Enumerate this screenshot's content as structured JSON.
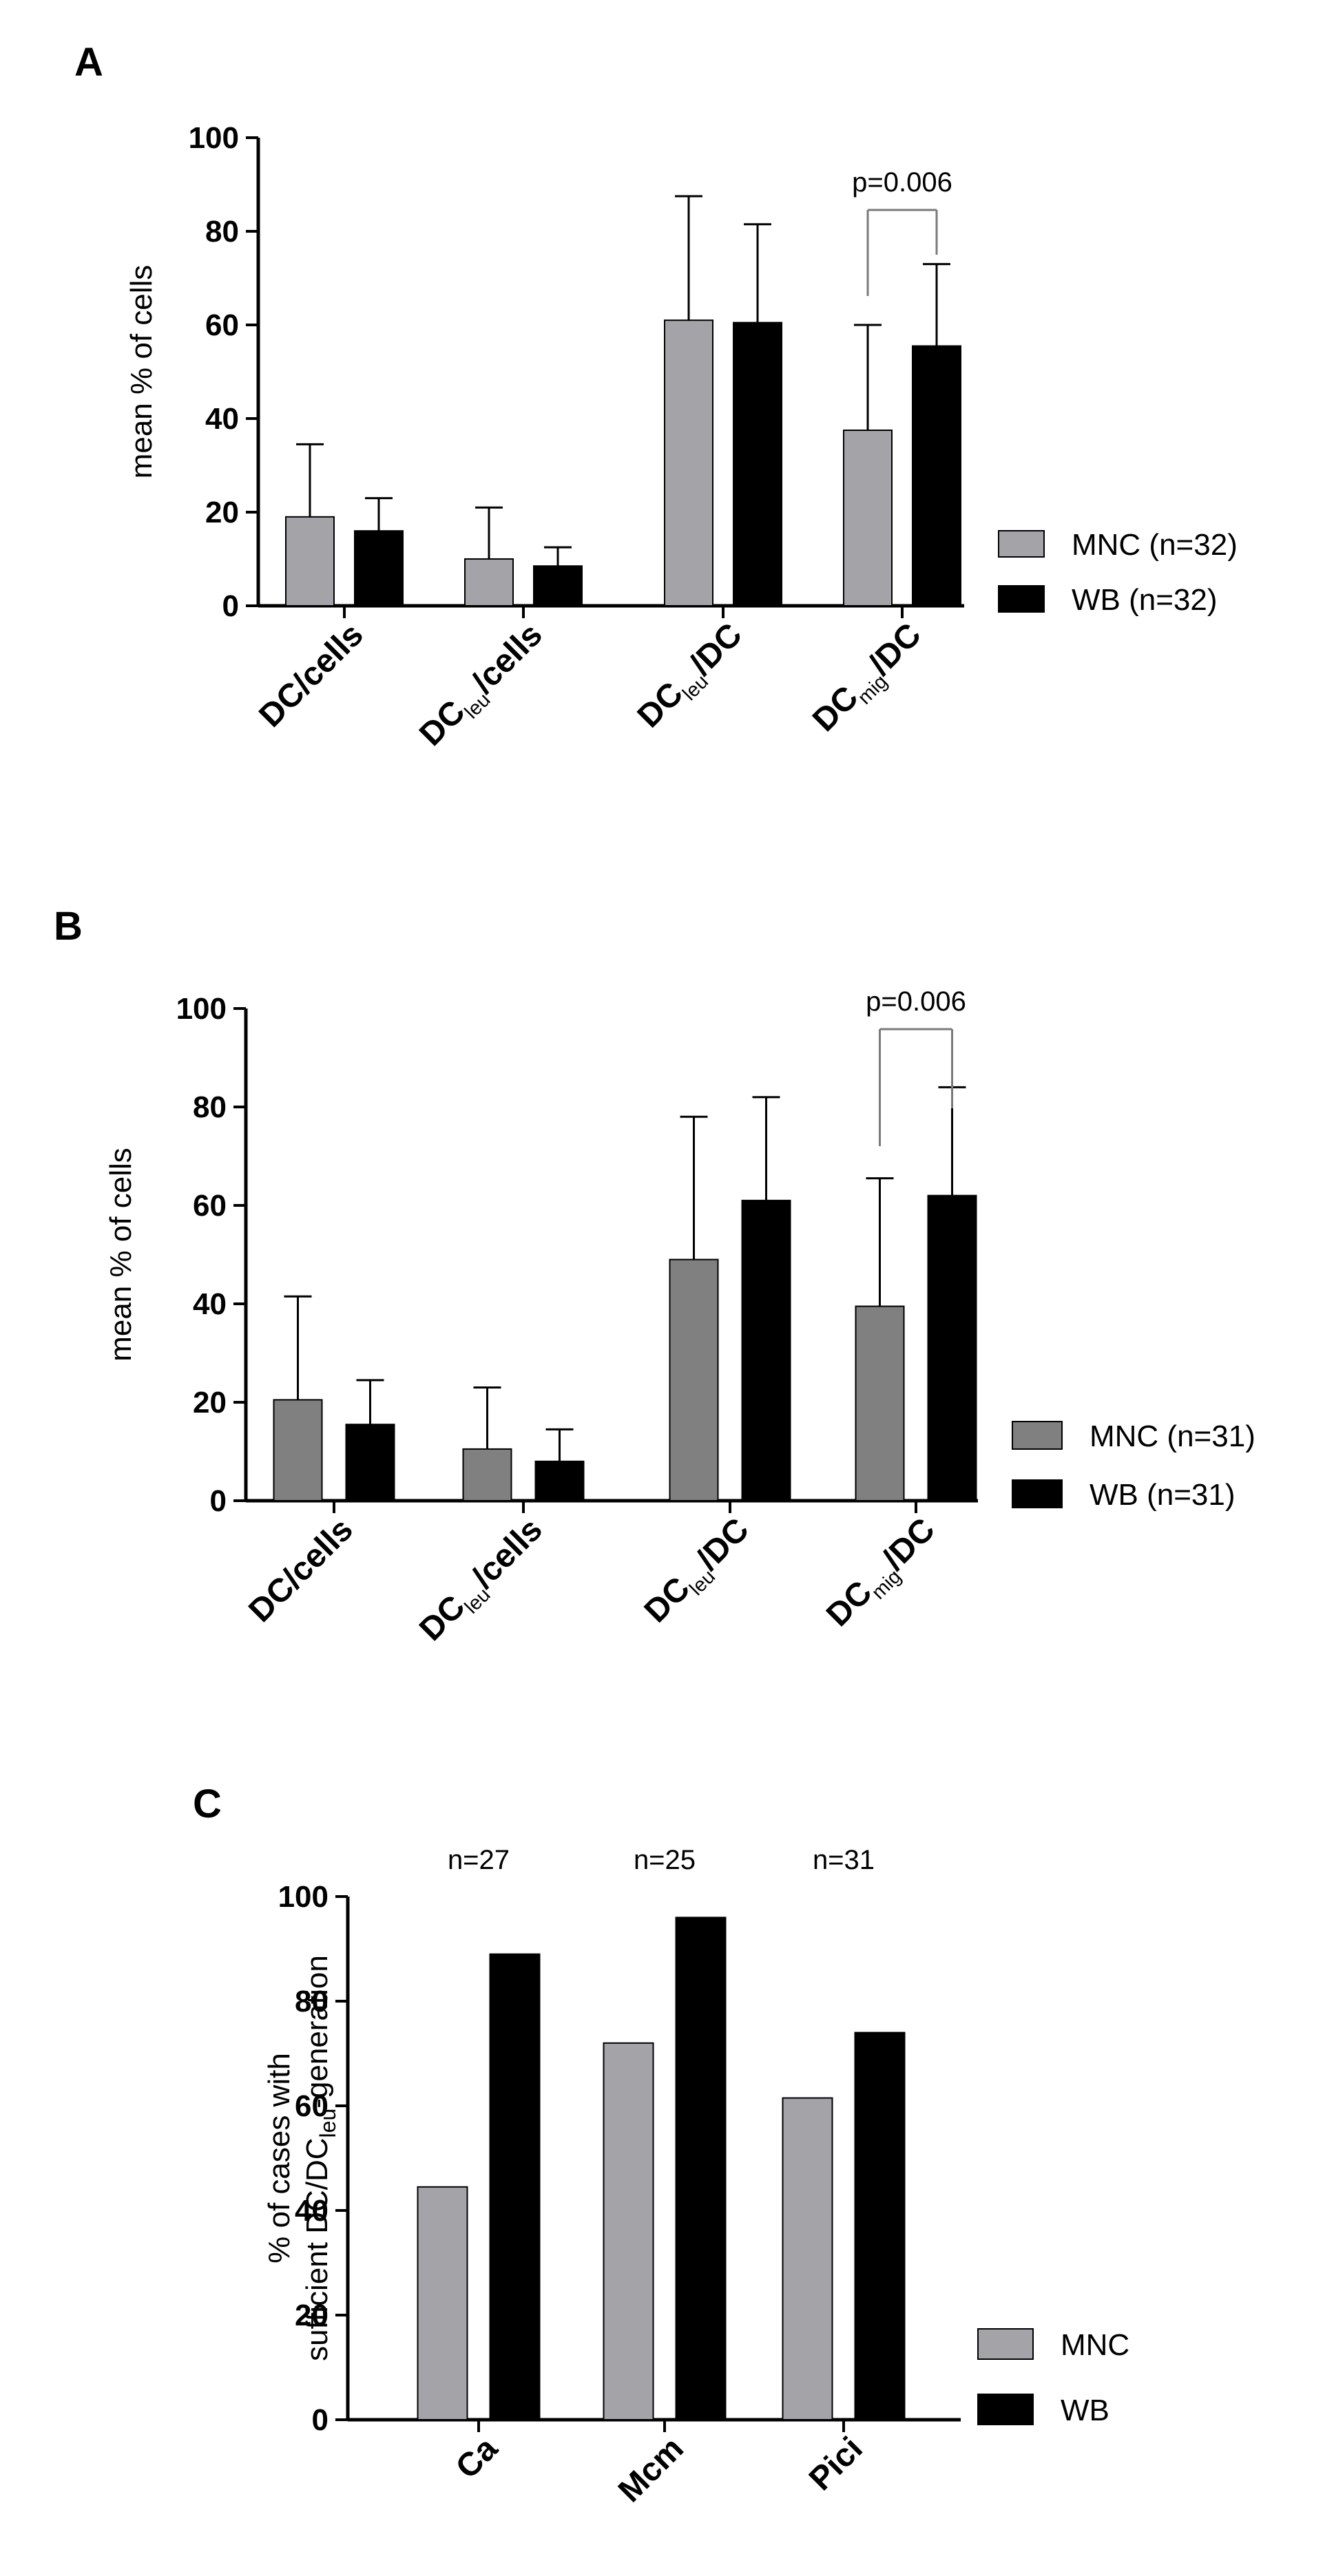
{
  "colors": {
    "mnc_a": "#a4a4a8",
    "mnc_b": "#808080",
    "mnc_c": "#a4a4a8",
    "wb": "#000000",
    "axis": "#000000",
    "bracket": "#7a7a7a"
  },
  "chart_data": [
    {
      "panel": "A",
      "type": "bar",
      "ylabel": "mean % of cells",
      "ylim": [
        0,
        100
      ],
      "yticks": [
        "0",
        "20",
        "40",
        "60",
        "80",
        "100"
      ],
      "categories": [
        {
          "main": "DC",
          "sub": "",
          "tail": "/cells"
        },
        {
          "main": "DC",
          "sub": "leu",
          "tail": "/cells"
        },
        {
          "main": "DC",
          "sub": "leu",
          "tail": "/DC"
        },
        {
          "main": "DC",
          "sub": "mig",
          "tail": "/DC"
        }
      ],
      "series": [
        {
          "name": "MNC (n=32)",
          "values": [
            19,
            10,
            61,
            37.5
          ],
          "errors": [
            15.5,
            11,
            26.5,
            22.5
          ]
        },
        {
          "name": "WB (n=32)",
          "values": [
            16,
            8.5,
            60.5,
            55.5
          ],
          "errors": [
            7,
            4,
            21,
            17.5
          ]
        }
      ],
      "annotation": "p=0.006",
      "legend_position": "right"
    },
    {
      "panel": "B",
      "type": "bar",
      "ylabel": "mean % of cells",
      "ylim": [
        0,
        100
      ],
      "yticks": [
        "0",
        "20",
        "40",
        "60",
        "80",
        "100"
      ],
      "categories": [
        {
          "main": "DC",
          "sub": "",
          "tail": "/cells"
        },
        {
          "main": "DC",
          "sub": "leu",
          "tail": "/cells"
        },
        {
          "main": "DC",
          "sub": "leu",
          "tail": "/DC"
        },
        {
          "main": "DC",
          "sub": "mig",
          "tail": "/DC"
        }
      ],
      "series": [
        {
          "name": "MNC (n=31)",
          "values": [
            20.5,
            10.5,
            49,
            39.5
          ],
          "errors": [
            21,
            12.5,
            29,
            26
          ]
        },
        {
          "name": "WB (n=31)",
          "values": [
            15.5,
            8,
            61,
            62
          ],
          "errors": [
            9,
            6.5,
            21,
            22
          ]
        }
      ],
      "annotation": "p=0.006",
      "legend_position": "right"
    },
    {
      "panel": "C",
      "type": "bar",
      "ylabel_line1": "% of cases with",
      "ylabel_line2_main": "sufficient DC/DC",
      "ylabel_line2_sub": "leu",
      "ylabel_line2_tail": "-generation",
      "ylim": [
        0,
        100
      ],
      "yticks": [
        "0",
        "20",
        "40",
        "60",
        "80",
        "100"
      ],
      "categories": [
        "Ca",
        "Mcm",
        "Pici"
      ],
      "group_labels": [
        "n=27",
        "n=25",
        "n=31"
      ],
      "series": [
        {
          "name": "MNC",
          "values": [
            44.5,
            72,
            61.5
          ]
        },
        {
          "name": "WB",
          "values": [
            89,
            96,
            74
          ]
        }
      ],
      "legend_position": "right"
    }
  ]
}
